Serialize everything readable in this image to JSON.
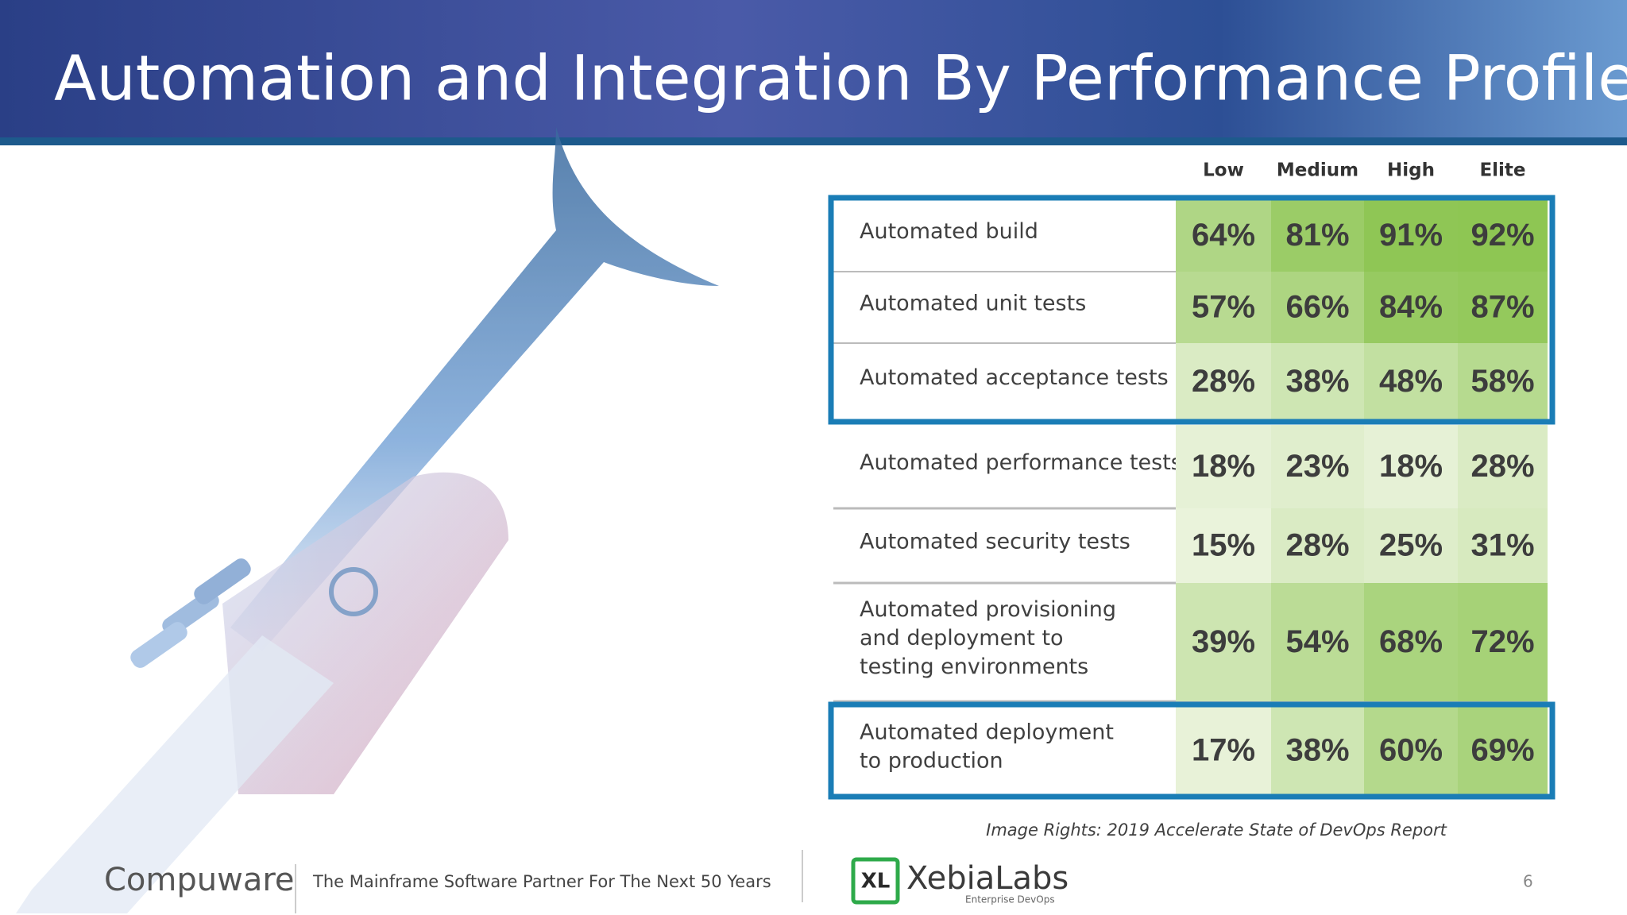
{
  "header": {
    "title": "Automation and Integration By Performance Profile"
  },
  "table": {
    "columns": [
      "Low",
      "Medium",
      "High",
      "Elite"
    ],
    "rows": [
      {
        "label": [
          "Automated build"
        ],
        "values": [
          "64%",
          "81%",
          "91%",
          "92%"
        ]
      },
      {
        "label": [
          "Automated unit tests"
        ],
        "values": [
          "57%",
          "66%",
          "84%",
          "87%"
        ]
      },
      {
        "label": [
          "Automated acceptance tests"
        ],
        "values": [
          "28%",
          "38%",
          "48%",
          "58%"
        ]
      },
      {
        "label": [
          "Automated performance tests"
        ],
        "values": [
          "18%",
          "23%",
          "18%",
          "28%"
        ]
      },
      {
        "label": [
          "Automated security tests"
        ],
        "values": [
          "15%",
          "28%",
          "25%",
          "31%"
        ]
      },
      {
        "label": [
          "Automated provisioning",
          "and deployment to",
          "testing environments"
        ],
        "values": [
          "39%",
          "54%",
          "68%",
          "72%"
        ]
      },
      {
        "label": [
          "Automated deployment",
          "to production"
        ],
        "values": [
          "17%",
          "38%",
          "60%",
          "69%"
        ]
      }
    ]
  },
  "caption": "Image Rights: 2019 Accelerate State of DevOps Report",
  "footer": {
    "company": "Compuware",
    "tagline": "The Mainframe Software Partner For The Next 50 Years",
    "partner_logo": "XL",
    "partner": "XebiaLabs",
    "partner_subtitle": "Enterprise DevOps",
    "page": "6"
  }
}
